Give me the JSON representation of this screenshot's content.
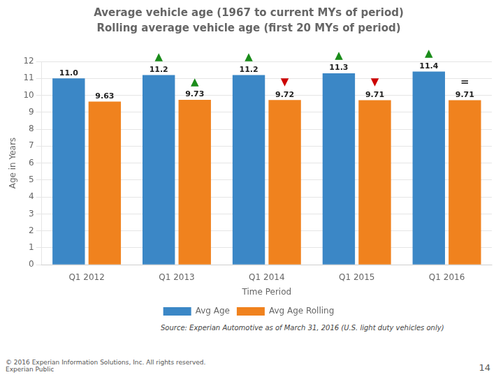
{
  "chart_data": {
    "type": "bar",
    "title": "Average vehicle age (1967 to current MYs of period)",
    "subtitle": "Rolling average vehicle age (first 20 MYs of period)",
    "xlabel": "Time Period",
    "ylabel": "Age in Years",
    "categories": [
      "Q1 2012",
      "Q1 2013",
      "Q1 2014",
      "Q1 2015",
      "Q1 2016"
    ],
    "series": [
      {
        "name": "Avg Age",
        "color": "#3B87C6",
        "values": [
          11.0,
          11.2,
          11.2,
          11.3,
          11.4
        ],
        "value_labels": [
          "11.0",
          "11.2",
          "11.2",
          "11.3",
          "11.4"
        ]
      },
      {
        "name": "Avg Age Rolling",
        "color": "#F0821E",
        "values": [
          9.63,
          9.73,
          9.72,
          9.71,
          9.71
        ]
      }
    ],
    "data_labels": true,
    "ylim": [
      0,
      12
    ],
    "yticks": [
      0,
      1,
      2,
      3,
      4,
      5,
      6,
      7,
      8,
      9,
      10,
      11,
      12
    ],
    "grid": true,
    "legend": "bottom",
    "annotations": [
      {
        "category": "Q1 2013",
        "series": "Avg Age",
        "text": "▲",
        "color": "#1A8C1A"
      },
      {
        "category": "Q1 2014",
        "series": "Avg Age",
        "text": "▲",
        "color": "#1A8C1A"
      },
      {
        "category": "Q1 2015",
        "series": "Avg Age",
        "text": "▲",
        "color": "#1A8C1A"
      },
      {
        "category": "Q1 2016",
        "series": "Avg Age",
        "text": "▲",
        "color": "#1A8C1A"
      },
      {
        "category": "Q1 2013",
        "series": "Avg Age Rolling",
        "text": "▲",
        "color": "#1A8C1A"
      },
      {
        "category": "Q1 2014",
        "series": "Avg Age Rolling",
        "text": "▼",
        "color": "#CC0000"
      },
      {
        "category": "Q1 2015",
        "series": "Avg Age Rolling",
        "text": "▼",
        "color": "#CC0000"
      },
      {
        "category": "Q1 2016",
        "series": "Avg Age Rolling",
        "text": "=",
        "color": "#333333"
      }
    ],
    "source": "Source: Experian Automotive as of March 31, 2016  (U.S. light duty vehicles only)",
    "copyright": "© 2016  Experian Information Solutions, Inc. All rights reserved.\nExperian Public",
    "page_number": "14"
  }
}
